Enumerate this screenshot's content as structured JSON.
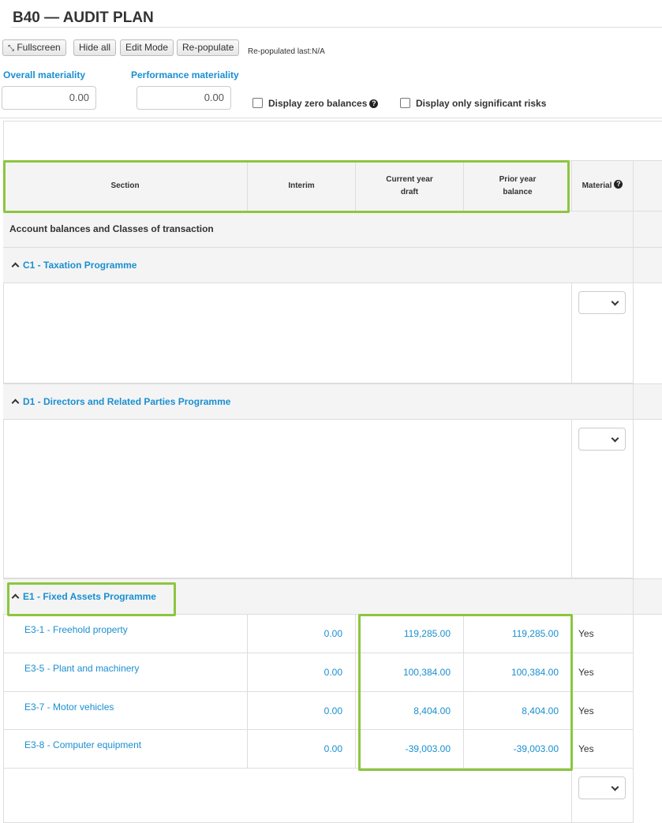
{
  "title": "B40 — AUDIT PLAN",
  "toolbar": {
    "fullscreen": "Fullscreen",
    "hide_all": "Hide all",
    "edit_mode": "Edit Mode",
    "repopulate": "Re-populate",
    "repopulated_last": "Re-populated last:N/A"
  },
  "materiality": {
    "overall_label": "Overall materiality",
    "overall_value": "0.00",
    "performance_label": "Performance materiality",
    "performance_value": "0.00"
  },
  "filters": {
    "zero_balances": "Display zero balances",
    "significant_risks": "Display only significant risks"
  },
  "table": {
    "headers": {
      "section": "Section",
      "interim": "Interim",
      "current_year_1": "Current year",
      "current_year_2": "draft",
      "prior_year_1": "Prior year",
      "prior_year_2": "balance",
      "material": "Material"
    },
    "category": "Account balances and Classes of transaction",
    "groups": [
      {
        "title": "C1 - Taxation Programme"
      },
      {
        "title": "D1 - Directors and Related Parties Programme"
      },
      {
        "title": "E1 - Fixed Assets Programme"
      }
    ],
    "rows": [
      {
        "code": "E3-1",
        "name": " - Freehold property",
        "interim": "0.00",
        "current": "119,285.00",
        "prior": "119,285.00",
        "material": "Yes"
      },
      {
        "code": "E3-5",
        "name": " - Plant and machinery",
        "interim": "0.00",
        "current": "100,384.00",
        "prior": "100,384.00",
        "material": "Yes"
      },
      {
        "code": "E3-7",
        "name": " - Motor vehicles",
        "interim": "0.00",
        "current": "8,404.00",
        "prior": "8,404.00",
        "material": "Yes"
      },
      {
        "code": "E3-8",
        "name": " - Computer equipment",
        "interim": "0.00",
        "current": "-39,003.00",
        "prior": "-39,003.00",
        "material": "Yes"
      }
    ]
  },
  "colors": {
    "accent": "#1a8fd0",
    "highlight": "#8cc63f"
  }
}
